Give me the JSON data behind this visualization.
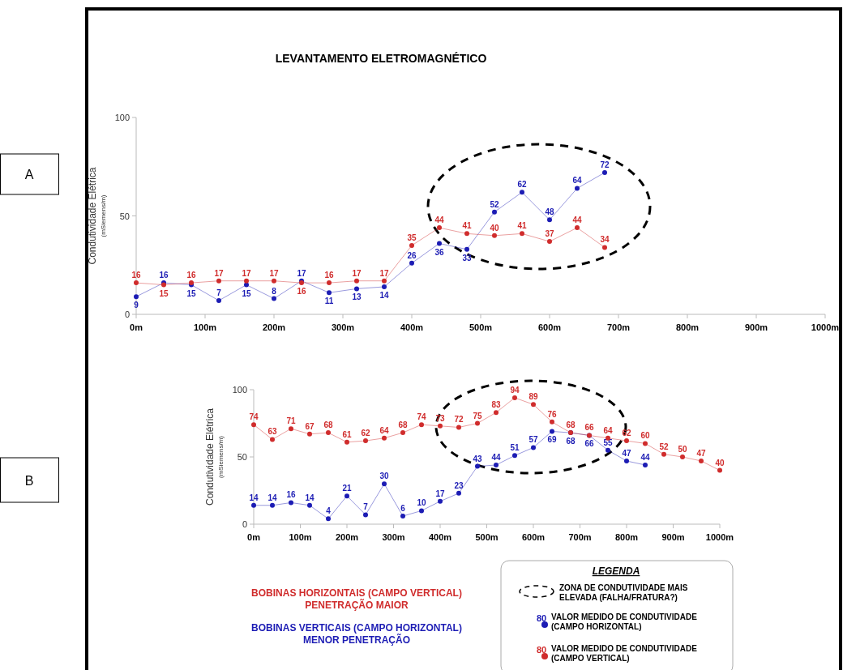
{
  "chart_data": [
    {
      "type": "line",
      "title": "LEVANTAMENTO ELETROMAGNÉTICO",
      "ylabel": "Condutividade Elétrica\n(mSiemens/m)",
      "x": [
        0,
        40,
        80,
        120,
        160,
        200,
        240,
        280,
        320,
        360,
        400,
        440,
        480,
        520,
        560,
        600,
        640,
        680
      ],
      "series": [
        {
          "color": "#1c1cb4",
          "values": [
            9,
            16,
            15,
            7,
            15,
            8,
            17,
            11,
            13,
            14,
            26,
            36,
            33,
            52,
            62,
            48,
            64,
            72
          ]
        },
        {
          "color": "#d02c2c",
          "values": [
            16,
            15,
            16,
            17,
            17,
            17,
            16,
            16,
            17,
            17,
            35,
            44,
            41,
            40,
            41,
            37,
            44,
            34
          ]
        }
      ],
      "xlim": [
        0,
        1000
      ],
      "xticks": [
        {
          "value": 0,
          "label": "0m"
        },
        {
          "value": 100,
          "label": "100m"
        },
        {
          "value": 200,
          "label": "200m"
        },
        {
          "value": 300,
          "label": "300m"
        },
        {
          "value": 400,
          "label": "400m"
        },
        {
          "value": 500,
          "label": "500m"
        },
        {
          "value": 600,
          "label": "600m"
        },
        {
          "value": 700,
          "label": "700m"
        },
        {
          "value": 800,
          "label": "800m"
        },
        {
          "value": 900,
          "label": "900m"
        },
        {
          "value": 1000,
          "label": "1000m"
        }
      ],
      "ylim": [
        0,
        100
      ],
      "yticks": [
        0,
        50,
        100
      ],
      "marker": "circle",
      "data_labels": true,
      "grid": false,
      "annotations": [
        "A"
      ]
    },
    {
      "type": "line",
      "ylabel": "Condutividade Elétrica\n(mSiemens/m)",
      "legend_title": "LEGENDA",
      "legend": "bottom right",
      "series": [
        {
          "name": "VALOR MEDIDO DE CONDUTIVIDADE\n(CAMPO HORIZONTAL)",
          "color": "#1c1cb4",
          "x": [
            0,
            40,
            80,
            120,
            160,
            200,
            240,
            280,
            320,
            360,
            400,
            440,
            480,
            520,
            560,
            600,
            640,
            680,
            720,
            760,
            800,
            840
          ],
          "values": [
            14,
            14,
            16,
            14,
            4,
            21,
            7,
            30,
            6,
            10,
            17,
            23,
            43,
            44,
            51,
            57,
            69,
            68,
            66,
            55,
            47,
            44
          ]
        },
        {
          "name": "VALOR MEDIDO DE CONDUTIVIDADE\n(CAMPO VERTICAL)",
          "color": "#d02c2c",
          "x": [
            0,
            40,
            80,
            120,
            160,
            200,
            240,
            280,
            320,
            360,
            400,
            440,
            480,
            520,
            560,
            600,
            640,
            680,
            720,
            760,
            800,
            840,
            880,
            920,
            960,
            1000
          ],
          "values": [
            74,
            63,
            71,
            67,
            68,
            61,
            62,
            64,
            68,
            74,
            73,
            72,
            75,
            83,
            94,
            89,
            76,
            68,
            66,
            64,
            62,
            60,
            52,
            50,
            47,
            40
          ]
        }
      ],
      "xlim": [
        0,
        1000
      ],
      "xticks": [
        {
          "value": 0,
          "label": "0m"
        },
        {
          "value": 100,
          "label": "100m"
        },
        {
          "value": 200,
          "label": "200m"
        },
        {
          "value": 300,
          "label": "300m"
        },
        {
          "value": 400,
          "label": "400m"
        },
        {
          "value": 500,
          "label": "500m"
        },
        {
          "value": 600,
          "label": "600m"
        },
        {
          "value": 700,
          "label": "700m"
        },
        {
          "value": 800,
          "label": "800m"
        },
        {
          "value": 900,
          "label": "900m"
        },
        {
          "value": 1000,
          "label": "1000m"
        }
      ],
      "ylim": [
        0,
        100
      ],
      "yticks": [
        0,
        50,
        100
      ],
      "marker": "circle",
      "data_labels": true,
      "grid": false,
      "annotations": [
        "B",
        "BOBINAS HORIZONTAIS (CAMPO VERTICAL)\nPENETRAÇÃO MAIOR",
        "BOBINAS VERTICAIS (CAMPO HORIZONTAL)\nMENOR PENETRAÇÃO",
        "ZONA DE CONDUTIVIDADE MAIS\nELEVADA (FALHA/FRATURA?)",
        "80"
      ]
    }
  ]
}
